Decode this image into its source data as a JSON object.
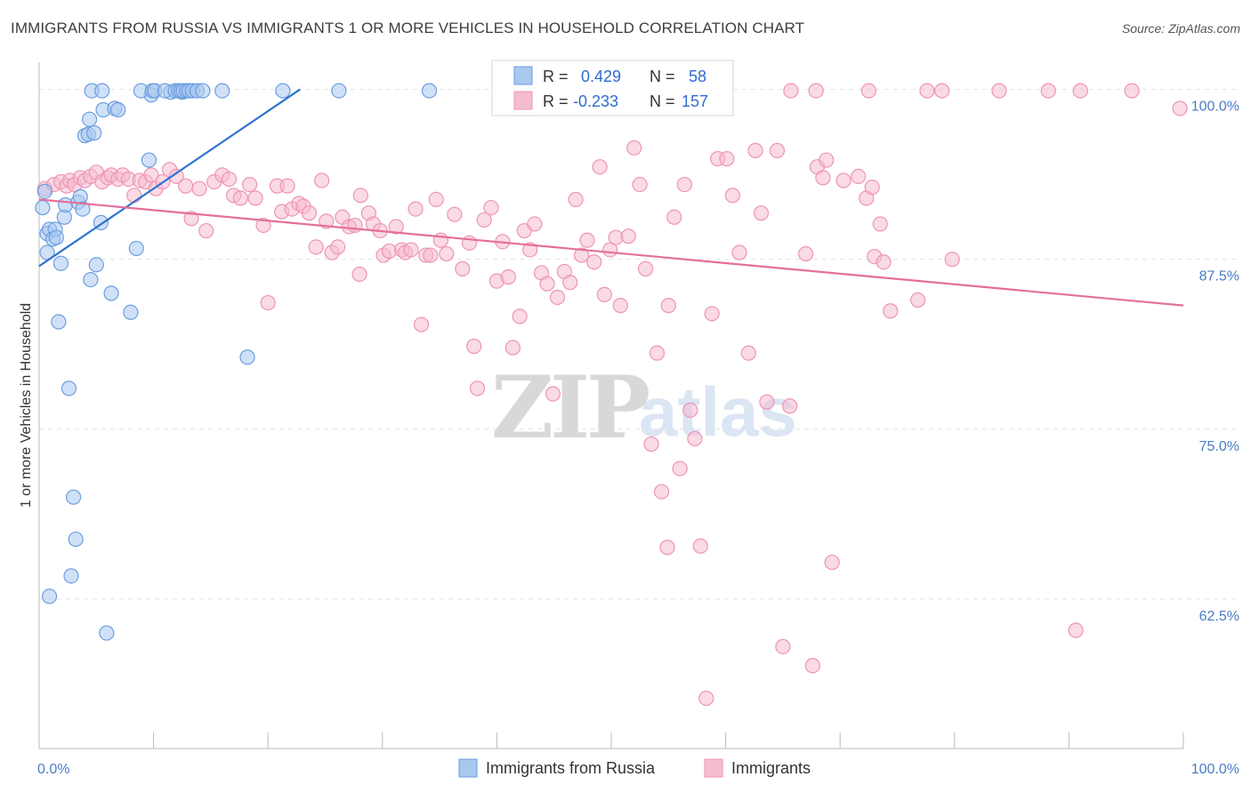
{
  "title": "IMMIGRANTS FROM RUSSIA VS IMMIGRANTS 1 OR MORE VEHICLES IN HOUSEHOLD CORRELATION CHART",
  "source": "Source: ZipAtlas.com",
  "watermark": {
    "zip": "ZIP",
    "atlas": "atlas"
  },
  "colors": {
    "blue_fill": "#a9c8f0",
    "blue_stroke": "#6b9ee0",
    "blue_line": "#2f72d0",
    "pink_fill": "#f5bcd0",
    "pink_stroke": "#ee94b4",
    "pink_line": "#e46f9b",
    "grid": "#e2e2e2",
    "tick_text": "#4a7cc7"
  },
  "chart_data": {
    "type": "scatter",
    "xlabel": "",
    "ylabel": "1 or more Vehicles in Household",
    "xlim": [
      0,
      100
    ],
    "ylim": [
      51.5,
      102
    ],
    "x_tick_labels": {
      "left": "0.0%",
      "right": "100.0%"
    },
    "y_ticks": [
      {
        "value": 100,
        "label": "100.0%"
      },
      {
        "value": 87.5,
        "label": "87.5%"
      },
      {
        "value": 75,
        "label": "75.0%"
      },
      {
        "value": 62.5,
        "label": "62.5%"
      }
    ],
    "legend": {
      "rows": [
        {
          "r_label": "R =",
          "r": "0.429",
          "n_label": "N =",
          "n": "58"
        },
        {
          "r_label": "R =",
          "r": "-0.233",
          "n_label": "N =",
          "n": "157"
        }
      ]
    },
    "series": [
      {
        "name": "Immigrants from Russia",
        "color": "blue",
        "trend": {
          "x1": 0,
          "y1": 87.0,
          "x2": 22.8,
          "y2": 100.0
        },
        "points": [
          [
            0.3,
            91.3
          ],
          [
            0.5,
            92.5
          ],
          [
            0.7,
            89.4
          ],
          [
            0.7,
            88.0
          ],
          [
            0.9,
            89.7
          ],
          [
            1.2,
            89.0
          ],
          [
            1.4,
            89.7
          ],
          [
            1.5,
            89.1
          ],
          [
            1.7,
            82.9
          ],
          [
            1.9,
            87.2
          ],
          [
            2.2,
            90.6
          ],
          [
            2.3,
            91.5
          ],
          [
            2.6,
            78.0
          ],
          [
            3.0,
            70.0
          ],
          [
            3.2,
            66.9
          ],
          [
            2.8,
            64.2
          ],
          [
            0.9,
            62.7
          ],
          [
            5.9,
            60.0
          ],
          [
            3.4,
            91.7
          ],
          [
            3.6,
            92.1
          ],
          [
            3.8,
            91.2
          ],
          [
            4.0,
            96.6
          ],
          [
            4.3,
            96.7
          ],
          [
            4.4,
            97.8
          ],
          [
            4.5,
            86.0
          ],
          [
            4.8,
            96.8
          ],
          [
            5.0,
            87.1
          ],
          [
            5.4,
            90.2
          ],
          [
            5.6,
            98.5
          ],
          [
            6.3,
            85.0
          ],
          [
            6.6,
            98.6
          ],
          [
            6.9,
            98.5
          ],
          [
            8.0,
            83.6
          ],
          [
            8.5,
            88.3
          ],
          [
            9.6,
            94.8
          ],
          [
            9.8,
            99.6
          ],
          [
            11.5,
            99.8
          ],
          [
            12.5,
            99.8
          ],
          [
            18.2,
            80.3
          ],
          [
            4.6,
            99.9
          ],
          [
            5.5,
            99.9
          ],
          [
            8.9,
            99.9
          ],
          [
            9.9,
            99.9
          ],
          [
            10.1,
            99.9
          ],
          [
            11.0,
            99.9
          ],
          [
            11.9,
            99.9
          ],
          [
            12.2,
            99.9
          ],
          [
            12.4,
            99.9
          ],
          [
            12.6,
            99.9
          ],
          [
            12.9,
            99.9
          ],
          [
            13.1,
            99.9
          ],
          [
            13.4,
            99.9
          ],
          [
            13.8,
            99.9
          ],
          [
            14.3,
            99.9
          ],
          [
            16.0,
            99.9
          ],
          [
            21.3,
            99.9
          ],
          [
            26.2,
            99.9
          ],
          [
            34.1,
            99.9
          ]
        ]
      },
      {
        "name": "Immigrants",
        "color": "pink",
        "trend": {
          "x1": 0,
          "y1": 91.9,
          "x2": 100,
          "y2": 84.1
        },
        "points": [
          [
            0.5,
            92.7
          ],
          [
            1.3,
            93.0
          ],
          [
            1.9,
            93.2
          ],
          [
            2.4,
            92.9
          ],
          [
            2.7,
            93.3
          ],
          [
            3.1,
            93.0
          ],
          [
            3.6,
            93.5
          ],
          [
            4.0,
            93.3
          ],
          [
            4.5,
            93.6
          ],
          [
            5.0,
            93.9
          ],
          [
            5.5,
            93.2
          ],
          [
            6.0,
            93.5
          ],
          [
            6.3,
            93.7
          ],
          [
            6.9,
            93.4
          ],
          [
            7.3,
            93.7
          ],
          [
            7.8,
            93.4
          ],
          [
            8.3,
            92.2
          ],
          [
            8.8,
            93.3
          ],
          [
            9.3,
            93.2
          ],
          [
            9.8,
            93.7
          ],
          [
            10.2,
            92.7
          ],
          [
            10.8,
            93.2
          ],
          [
            11.4,
            94.1
          ],
          [
            12.0,
            93.6
          ],
          [
            12.8,
            92.9
          ],
          [
            13.3,
            90.5
          ],
          [
            14.0,
            92.7
          ],
          [
            14.6,
            89.6
          ],
          [
            15.3,
            93.2
          ],
          [
            16.0,
            93.7
          ],
          [
            16.6,
            93.4
          ],
          [
            17.0,
            92.2
          ],
          [
            17.6,
            92.0
          ],
          [
            18.4,
            93.0
          ],
          [
            18.9,
            92.0
          ],
          [
            19.6,
            90.0
          ],
          [
            20.0,
            84.3
          ],
          [
            20.8,
            92.9
          ],
          [
            21.2,
            91.0
          ],
          [
            21.7,
            92.9
          ],
          [
            22.1,
            91.2
          ],
          [
            22.7,
            91.6
          ],
          [
            23.1,
            91.4
          ],
          [
            23.6,
            90.9
          ],
          [
            24.2,
            88.4
          ],
          [
            24.7,
            93.3
          ],
          [
            25.1,
            90.3
          ],
          [
            25.6,
            88.0
          ],
          [
            26.1,
            88.4
          ],
          [
            26.5,
            90.6
          ],
          [
            27.1,
            89.9
          ],
          [
            27.6,
            90.0
          ],
          [
            28.0,
            86.4
          ],
          [
            28.1,
            92.2
          ],
          [
            28.8,
            90.9
          ],
          [
            29.2,
            90.1
          ],
          [
            29.8,
            89.6
          ],
          [
            30.1,
            87.8
          ],
          [
            30.6,
            88.1
          ],
          [
            31.2,
            89.9
          ],
          [
            31.7,
            88.2
          ],
          [
            32.0,
            88.0
          ],
          [
            32.5,
            88.2
          ],
          [
            32.9,
            91.2
          ],
          [
            33.4,
            82.7
          ],
          [
            33.8,
            87.8
          ],
          [
            34.2,
            87.8
          ],
          [
            34.7,
            91.9
          ],
          [
            35.1,
            88.9
          ],
          [
            35.6,
            87.9
          ],
          [
            36.3,
            90.8
          ],
          [
            37.0,
            86.8
          ],
          [
            37.6,
            88.7
          ],
          [
            38.0,
            81.1
          ],
          [
            38.3,
            78.0
          ],
          [
            38.9,
            90.4
          ],
          [
            39.5,
            91.3
          ],
          [
            40.0,
            85.9
          ],
          [
            40.5,
            88.8
          ],
          [
            41.0,
            86.2
          ],
          [
            41.4,
            81.0
          ],
          [
            42.0,
            83.3
          ],
          [
            42.4,
            89.6
          ],
          [
            42.9,
            88.2
          ],
          [
            43.3,
            90.1
          ],
          [
            43.9,
            86.5
          ],
          [
            44.4,
            85.7
          ],
          [
            44.9,
            77.6
          ],
          [
            45.3,
            84.7
          ],
          [
            45.9,
            86.6
          ],
          [
            46.4,
            85.8
          ],
          [
            46.9,
            91.9
          ],
          [
            47.4,
            87.8
          ],
          [
            47.9,
            88.9
          ],
          [
            48.5,
            87.3
          ],
          [
            49.0,
            94.3
          ],
          [
            49.4,
            84.9
          ],
          [
            49.9,
            88.2
          ],
          [
            50.4,
            89.1
          ],
          [
            50.8,
            84.1
          ],
          [
            51.5,
            89.2
          ],
          [
            52.0,
            95.7
          ],
          [
            52.5,
            93.0
          ],
          [
            53.0,
            86.8
          ],
          [
            53.5,
            73.9
          ],
          [
            54.0,
            80.6
          ],
          [
            54.4,
            70.4
          ],
          [
            55.0,
            84.1
          ],
          [
            55.5,
            90.6
          ],
          [
            56.0,
            72.1
          ],
          [
            56.4,
            93.0
          ],
          [
            56.9,
            76.4
          ],
          [
            57.3,
            74.3
          ],
          [
            57.8,
            66.4
          ],
          [
            58.3,
            55.2
          ],
          [
            58.8,
            83.5
          ],
          [
            59.3,
            94.9
          ],
          [
            60.1,
            94.9
          ],
          [
            60.6,
            92.2
          ],
          [
            61.2,
            88.0
          ],
          [
            62.0,
            80.6
          ],
          [
            62.6,
            95.5
          ],
          [
            63.1,
            90.9
          ],
          [
            63.6,
            77.0
          ],
          [
            64.5,
            95.5
          ],
          [
            65.0,
            59.0
          ],
          [
            65.6,
            76.7
          ],
          [
            65.7,
            99.9
          ],
          [
            67.0,
            87.9
          ],
          [
            67.6,
            57.6
          ],
          [
            68.0,
            94.3
          ],
          [
            68.5,
            93.5
          ],
          [
            68.8,
            94.8
          ],
          [
            69.3,
            65.2
          ],
          [
            70.3,
            93.3
          ],
          [
            71.6,
            93.6
          ],
          [
            72.3,
            92.0
          ],
          [
            72.8,
            92.8
          ],
          [
            73.0,
            87.7
          ],
          [
            73.5,
            90.1
          ],
          [
            73.8,
            87.3
          ],
          [
            74.4,
            83.7
          ],
          [
            76.8,
            84.5
          ],
          [
            79.8,
            87.5
          ],
          [
            54.9,
            66.3
          ],
          [
            90.6,
            60.2
          ],
          [
            67.9,
            99.9
          ],
          [
            72.5,
            99.9
          ],
          [
            77.6,
            99.9
          ],
          [
            78.9,
            99.9
          ],
          [
            83.9,
            99.9
          ],
          [
            88.2,
            99.9
          ],
          [
            91.0,
            99.9
          ],
          [
            95.5,
            99.9
          ],
          [
            99.7,
            98.6
          ]
        ]
      }
    ]
  },
  "bottom_legend": [
    {
      "label": "Immigrants from Russia",
      "color": "blue"
    },
    {
      "label": "Immigrants",
      "color": "pink"
    }
  ]
}
